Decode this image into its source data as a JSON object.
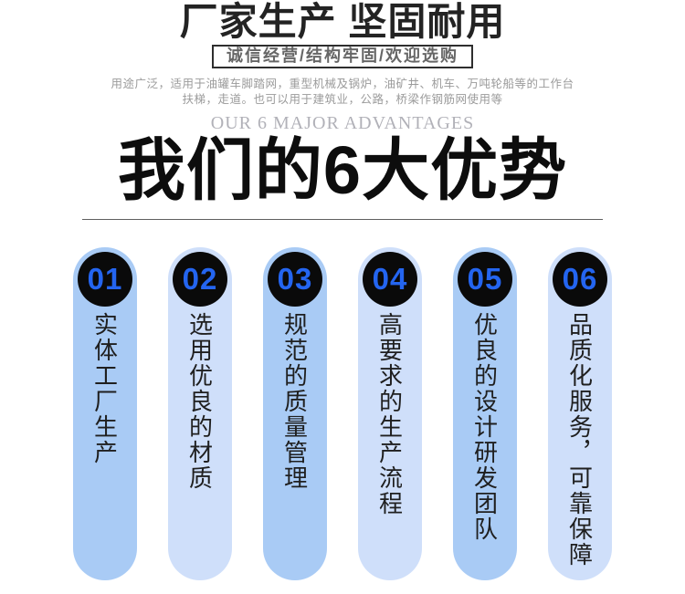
{
  "header": {
    "title": "厂家生产 坚固耐用",
    "subtitle": "诚信经营/结构牢固/欢迎选购",
    "description_line1": "用途广泛，适用于油罐车脚踏网，重型机械及锅炉，油矿井、机车、万吨轮船等的工作台",
    "description_line2": "扶梯，走道。也可以用于建筑业，公路，桥梁作钢筋网使用等",
    "watermark": "OUR 6 MAJOR ADVANTAGES",
    "main_title": "我们的6大优势"
  },
  "advantages": {
    "items": [
      {
        "number": "01",
        "text": "实体工厂生产"
      },
      {
        "number": "02",
        "text": "选用优良的材质"
      },
      {
        "number": "03",
        "text": "规范的质量管理"
      },
      {
        "number": "04",
        "text": "高要求的生产流程"
      },
      {
        "number": "05",
        "text": "优良的设计研发团队"
      },
      {
        "number": "06",
        "text": "品质化服务，可靠保障"
      }
    ],
    "colors": {
      "pill_dark": "#a9cbf5",
      "pill_light": "#cfdffa",
      "circle_background": "#0a0a0a",
      "number_text": "#2465f0",
      "pill_text": "#1f1f1f"
    }
  }
}
